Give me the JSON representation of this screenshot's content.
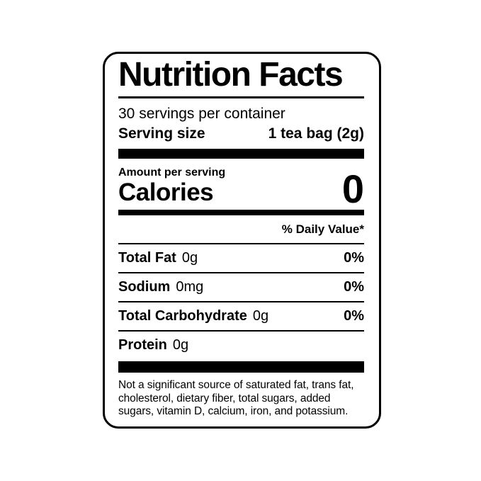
{
  "label": {
    "title": "Nutrition Facts",
    "servings_per_container": "30 servings per container",
    "serving_size_label": "Serving size",
    "serving_size_value": "1 tea bag (2g)",
    "amount_per_serving": "Amount per serving",
    "calories_label": "Calories",
    "calories_value": "0",
    "daily_value_header": "% Daily Value*",
    "nutrients": [
      {
        "name": "Total Fat",
        "amount": "0g",
        "dv": "0%"
      },
      {
        "name": "Sodium",
        "amount": "0mg",
        "dv": "0%"
      },
      {
        "name": "Total Carbohydrate",
        "amount": "0g",
        "dv": "0%"
      },
      {
        "name": "Protein",
        "amount": "0g",
        "dv": ""
      }
    ],
    "footnote": "Not a significant source of saturated fat, trans fat, cholesterol, dietary fiber, total sugars, added sugars, vitamin D, calcium, iron, and potassium.",
    "colors": {
      "ink": "#000000",
      "background": "#ffffff"
    }
  }
}
